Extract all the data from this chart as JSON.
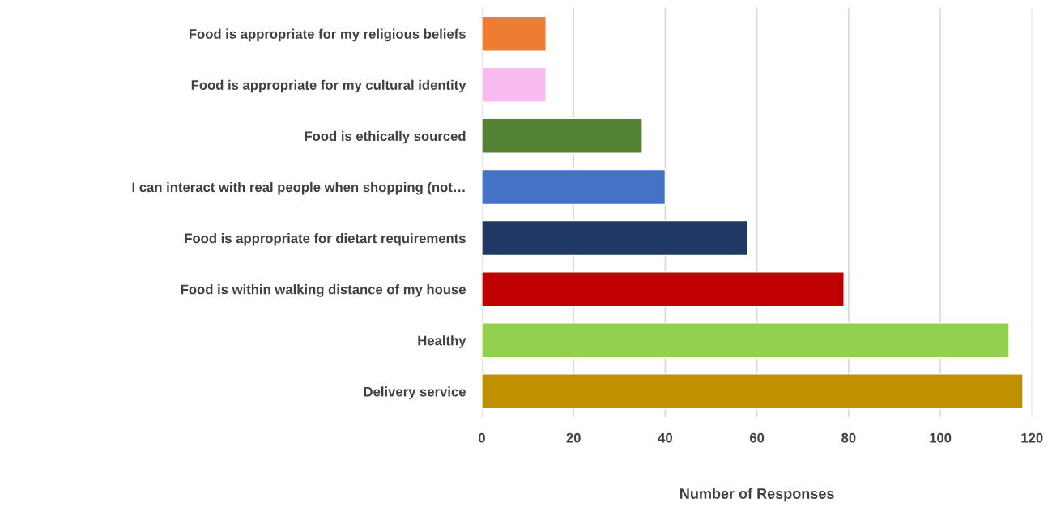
{
  "chart_data": {
    "type": "bar",
    "orientation": "horizontal",
    "xlabel": "Number of Responses",
    "categories": [
      "Food is appropriate for my religious beliefs",
      "Food is appropriate for my cultural identity",
      "Food is ethically sourced",
      "I can interact with real people when shopping (not…",
      "Food is appropriate for dietart requirements",
      "Food is within walking distance of my house",
      "Healthy",
      "Delivery service"
    ],
    "values": [
      14,
      14,
      35,
      40,
      58,
      79,
      115,
      118
    ],
    "colors": [
      "#ed7d31",
      "#f8bbf0",
      "#548235",
      "#4472c4",
      "#203864",
      "#c00000",
      "#92d050",
      "#bf9000"
    ],
    "xlim": [
      0,
      120
    ],
    "xticks": [
      0,
      20,
      40,
      60,
      80,
      100,
      120
    ],
    "grid": "x",
    "legend": false
  }
}
